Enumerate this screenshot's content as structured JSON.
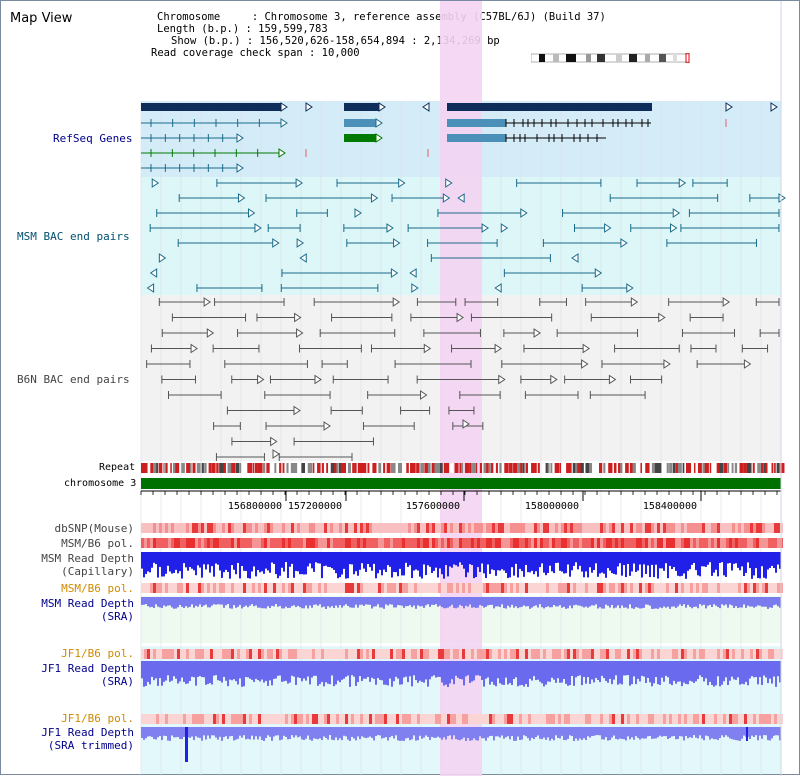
{
  "view": {
    "title": "Map View",
    "chromosome_label": "Chromosome     : Chromosome 3, reference assembly (C57BL/6J) (Build 37)",
    "length_label": "Length (b.p.) : 159,599,783",
    "show_label": "Show (b.p.) : 156,520,626-158,654,894 : 2,134,269 bp",
    "coverage_label": "Read coverage check span : 10,000"
  },
  "tracks": {
    "refseq": "RefSeq Genes",
    "msm_bac": "MSM BAC end pairs",
    "b6n_bac": "B6N BAC end pairs",
    "repeat": "Repeat",
    "chromosome": "chromosome 3",
    "dbsnp": "dbSNP(Mouse)",
    "msm_b6_pol_cap": "MSM/B6 pol.",
    "msm_depth_cap_1": "MSM Read Depth",
    "msm_depth_cap_2": "(Capillary)",
    "msm_b6_pol_sra": "MSM/B6 pol.",
    "msm_depth_sra_1": "MSM Read Depth",
    "msm_depth_sra_2": "(SRA)",
    "jf1_b6_pol_sra": "JF1/B6 pol.",
    "jf1_depth_sra_1": "JF1 Read Depth",
    "jf1_depth_sra_2": "(SRA)",
    "jf1_b6_pol_trim": "JF1/B6 pol.",
    "jf1_depth_trim_1": "JF1 Read Depth",
    "jf1_depth_trim_2": "(SRA trimmed)"
  },
  "ruler": {
    "ticks": [
      "156800000",
      "157200000",
      "157600000",
      "158000000",
      "158400000"
    ]
  },
  "colors": {
    "refseq_bg": "#d4ecf8",
    "msm_bg": "#ddf6f8",
    "b6n_bg": "#f2f2f2",
    "highlight": "#f4d4f2",
    "navy": "#0f2d5a",
    "teal": "#1a6a8a",
    "green": "#007a00",
    "chrom_green": "#007000",
    "orange_label": "#d08a00",
    "blue_label": "#00008b",
    "gray_label": "#444444"
  }
}
